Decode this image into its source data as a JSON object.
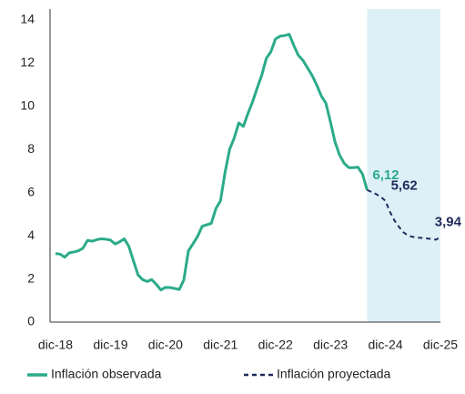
{
  "chart_data": {
    "type": "line",
    "categories": [
      "dic-18",
      null,
      null,
      null,
      null,
      null,
      null,
      null,
      null,
      null,
      null,
      null,
      "dic-19",
      null,
      null,
      null,
      null,
      null,
      null,
      null,
      null,
      null,
      null,
      null,
      "dic-20",
      null,
      null,
      null,
      null,
      null,
      null,
      null,
      null,
      null,
      null,
      null,
      "dic-21",
      null,
      null,
      null,
      null,
      null,
      null,
      null,
      null,
      null,
      null,
      null,
      "dic-22",
      null,
      null,
      null,
      null,
      null,
      null,
      null,
      null,
      null,
      null,
      null,
      "dic-23",
      null,
      null,
      null,
      null,
      null,
      null,
      null,
      null,
      null,
      null,
      null,
      "dic-24",
      null,
      null,
      null,
      null,
      null,
      null,
      null,
      null,
      null,
      null,
      null,
      "dic-25"
    ],
    "series": [
      {
        "name": "Inflación observada",
        "color": "#2bab8a",
        "line_style": "solid",
        "values": [
          3.18,
          3.15,
          3.01,
          3.21,
          3.25,
          3.31,
          3.43,
          3.79,
          3.75,
          3.82,
          3.86,
          3.84,
          3.8,
          3.62,
          3.72,
          3.86,
          3.51,
          2.85,
          2.19,
          1.97,
          1.88,
          1.97,
          1.75,
          1.49,
          1.61,
          1.6,
          1.56,
          1.51,
          1.95,
          3.3,
          3.63,
          3.97,
          4.44,
          4.51,
          4.58,
          5.26,
          5.62,
          6.94,
          8.01,
          8.53,
          9.23,
          9.07,
          9.67,
          10.21,
          10.84,
          11.44,
          12.22,
          12.53,
          13.12,
          13.25,
          13.28,
          13.34,
          12.82,
          12.36,
          12.13,
          11.78,
          11.43,
          10.99,
          10.48,
          10.15,
          9.28,
          8.35,
          7.74,
          7.36,
          7.16,
          7.16,
          7.18,
          6.86,
          6.12,
          null,
          null,
          null,
          null,
          null,
          null,
          null,
          null,
          null,
          null,
          null,
          null,
          null,
          null,
          null,
          null
        ],
        "value_labels": [
          null,
          null,
          null,
          null,
          null,
          null,
          null,
          null,
          null,
          null,
          null,
          null,
          null,
          null,
          null,
          null,
          null,
          null,
          null,
          null,
          null,
          null,
          null,
          null,
          null,
          null,
          null,
          null,
          null,
          null,
          null,
          null,
          null,
          null,
          null,
          null,
          null,
          null,
          null,
          null,
          null,
          null,
          null,
          null,
          null,
          null,
          null,
          null,
          null,
          null,
          null,
          null,
          null,
          null,
          null,
          null,
          null,
          null,
          null,
          null,
          null,
          null,
          null,
          null,
          null,
          null,
          null,
          null,
          "6,12",
          null,
          null,
          null,
          null,
          null,
          null,
          null,
          null,
          null,
          null,
          null,
          null,
          null,
          null,
          null,
          null
        ]
      },
      {
        "name": "Inflación proyectada",
        "color": "#1f2a5c",
        "line_style": "dashed",
        "values": [
          null,
          null,
          null,
          null,
          null,
          null,
          null,
          null,
          null,
          null,
          null,
          null,
          null,
          null,
          null,
          null,
          null,
          null,
          null,
          null,
          null,
          null,
          null,
          null,
          null,
          null,
          null,
          null,
          null,
          null,
          null,
          null,
          null,
          null,
          null,
          null,
          null,
          null,
          null,
          null,
          null,
          null,
          null,
          null,
          null,
          null,
          null,
          null,
          null,
          null,
          null,
          null,
          null,
          null,
          null,
          null,
          null,
          null,
          null,
          null,
          null,
          null,
          null,
          null,
          null,
          null,
          null,
          null,
          6.12,
          6.03,
          5.93,
          5.8,
          5.62,
          5.1,
          4.7,
          4.4,
          4.15,
          4.0,
          3.95,
          3.92,
          3.9,
          3.88,
          3.85,
          3.82,
          3.94
        ],
        "value_labels": [
          null,
          null,
          null,
          null,
          null,
          null,
          null,
          null,
          null,
          null,
          null,
          null,
          null,
          null,
          null,
          null,
          null,
          null,
          null,
          null,
          null,
          null,
          null,
          null,
          null,
          null,
          null,
          null,
          null,
          null,
          null,
          null,
          null,
          null,
          null,
          null,
          null,
          null,
          null,
          null,
          null,
          null,
          null,
          null,
          null,
          null,
          null,
          null,
          null,
          null,
          null,
          null,
          null,
          null,
          null,
          null,
          null,
          null,
          null,
          null,
          null,
          null,
          null,
          null,
          null,
          null,
          null,
          null,
          null,
          null,
          null,
          null,
          "5,62",
          null,
          null,
          null,
          null,
          null,
          null,
          null,
          null,
          null,
          null,
          null,
          "3,94"
        ]
      }
    ],
    "forecast_shading": "#ddf0f7",
    "ylim": [
      0,
      14
    ],
    "yticks": [
      0,
      2,
      4,
      6,
      8,
      10,
      12,
      14
    ],
    "grid": false,
    "legend": "bottom"
  }
}
